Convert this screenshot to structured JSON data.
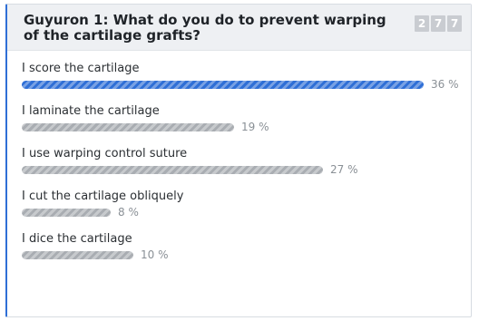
{
  "poll": {
    "title": "Guyuron 1: What do you do to prevent warping of the cartilage grafts?",
    "response_count_digits": [
      "2",
      "7",
      "7"
    ],
    "accent_color": "#2f6fd6",
    "bar_color": "#a9adb2",
    "options": [
      {
        "label": "I score the cartilage",
        "percent": 36,
        "percent_text": "36 %",
        "highlighted": true
      },
      {
        "label": "I laminate the cartilage",
        "percent": 19,
        "percent_text": "19 %",
        "highlighted": false
      },
      {
        "label": "I use warping control suture",
        "percent": 27,
        "percent_text": "27 %",
        "highlighted": false
      },
      {
        "label": "I cut the cartilage obliquely",
        "percent": 8,
        "percent_text": "8 %",
        "highlighted": false
      },
      {
        "label": "I dice the cartilage",
        "percent": 10,
        "percent_text": "10 %",
        "highlighted": false
      }
    ]
  }
}
